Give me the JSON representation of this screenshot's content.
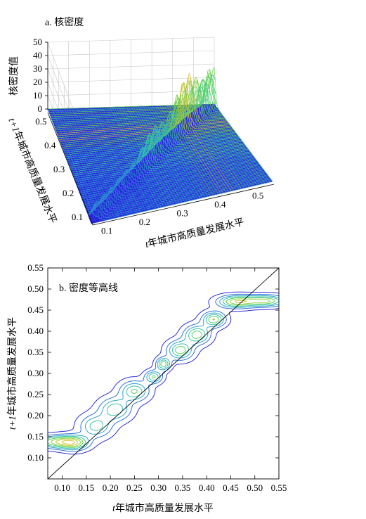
{
  "chart_data": [
    {
      "type": "surface3d",
      "panel_label": "a. 核密度",
      "xlabel_prefix": "t",
      "xlabel": "年城市高质量发展水平",
      "ylabel_prefix": "t+1",
      "ylabel": "年城市高质量发展水平",
      "zlabel": "核密度值",
      "x_ticks": [
        "0.1",
        "0.2",
        "0.3",
        "0.4",
        "0.5"
      ],
      "y_ticks": [
        "0.1",
        "0.2",
        "0.3",
        "0.4",
        "0.5"
      ],
      "z_ticks": [
        "0",
        "10",
        "20",
        "30",
        "40",
        "50"
      ],
      "xlim": [
        0.07,
        0.55
      ],
      "ylim": [
        0.07,
        0.55
      ],
      "zlim": [
        0,
        50
      ],
      "colormap": [
        "#2b2bd6",
        "#2c8fd6",
        "#33c2b8",
        "#58d24d",
        "#d9c43a",
        "#e8742a"
      ],
      "ridge": [
        {
          "t": 0.08,
          "density": 14
        },
        {
          "t": 0.1,
          "density": 16
        },
        {
          "t": 0.12,
          "density": 13
        },
        {
          "t": 0.15,
          "density": 10
        },
        {
          "t": 0.18,
          "density": 12
        },
        {
          "t": 0.21,
          "density": 14
        },
        {
          "t": 0.24,
          "density": 17
        },
        {
          "t": 0.27,
          "density": 20
        },
        {
          "t": 0.3,
          "density": 24
        },
        {
          "t": 0.33,
          "density": 26
        },
        {
          "t": 0.36,
          "density": 29
        },
        {
          "t": 0.39,
          "density": 32
        },
        {
          "t": 0.42,
          "density": 38
        },
        {
          "t": 0.45,
          "density": 45
        },
        {
          "t": 0.48,
          "density": 40
        },
        {
          "t": 0.5,
          "density": 30
        }
      ]
    },
    {
      "type": "contour",
      "panel_label": "b. 密度等高线",
      "xlabel_prefix": "t",
      "xlabel": "年城市高质量发展水平",
      "ylabel_prefix": "t+1",
      "ylabel": "年城市高质量发展水平",
      "x_ticks": [
        "0.10",
        "0.15",
        "0.20",
        "0.25",
        "0.30",
        "0.35",
        "0.40",
        "0.45",
        "0.50",
        "0.55"
      ],
      "y_ticks": [
        "0.10",
        "0.15",
        "0.20",
        "0.25",
        "0.30",
        "0.35",
        "0.40",
        "0.45",
        "0.50",
        "0.55"
      ],
      "xlim": [
        0.07,
        0.55
      ],
      "ylim": [
        0.05,
        0.55
      ],
      "diagonal": [
        [
          0.07,
          0.05
        ],
        [
          0.55,
          0.55
        ]
      ],
      "levels": 8,
      "colormap": [
        "#2b2bd6",
        "#2c8fd6",
        "#33c2b8",
        "#58d24d",
        "#b5d23a",
        "#d9c43a"
      ],
      "blobs": [
        {
          "x": 0.09,
          "y": 0.138,
          "sx": 0.03,
          "sy": 0.01,
          "w": 1.0
        },
        {
          "x": 0.125,
          "y": 0.135,
          "sx": 0.02,
          "sy": 0.012,
          "w": 0.8
        },
        {
          "x": 0.17,
          "y": 0.175,
          "sx": 0.022,
          "sy": 0.018,
          "w": 0.7
        },
        {
          "x": 0.21,
          "y": 0.215,
          "sx": 0.022,
          "sy": 0.018,
          "w": 0.75
        },
        {
          "x": 0.25,
          "y": 0.258,
          "sx": 0.02,
          "sy": 0.016,
          "w": 0.8
        },
        {
          "x": 0.29,
          "y": 0.292,
          "sx": 0.012,
          "sy": 0.01,
          "w": 0.8
        },
        {
          "x": 0.31,
          "y": 0.322,
          "sx": 0.01,
          "sy": 0.01,
          "w": 0.9
        },
        {
          "x": 0.345,
          "y": 0.355,
          "sx": 0.018,
          "sy": 0.015,
          "w": 0.9
        },
        {
          "x": 0.38,
          "y": 0.392,
          "sx": 0.018,
          "sy": 0.015,
          "w": 0.9
        },
        {
          "x": 0.415,
          "y": 0.428,
          "sx": 0.016,
          "sy": 0.012,
          "w": 0.95
        },
        {
          "x": 0.46,
          "y": 0.47,
          "sx": 0.025,
          "sy": 0.01,
          "w": 1.0
        },
        {
          "x": 0.52,
          "y": 0.472,
          "sx": 0.03,
          "sy": 0.009,
          "w": 1.0
        }
      ]
    }
  ]
}
